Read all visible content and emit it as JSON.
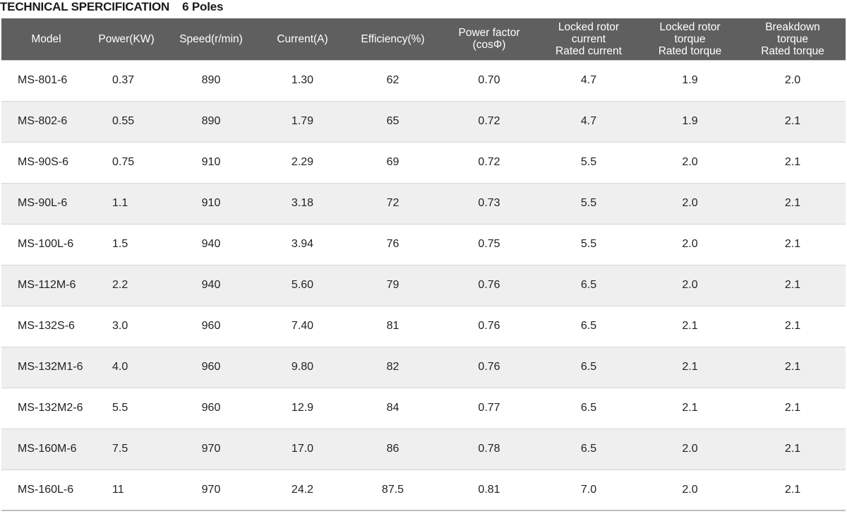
{
  "title": {
    "main": "TECHNICAL SPERCIFICATION",
    "poles": "6 Poles"
  },
  "columns": [
    {
      "key": "model",
      "lines": [
        "Model"
      ]
    },
    {
      "key": "power",
      "lines": [
        "Power(KW)"
      ]
    },
    {
      "key": "speed",
      "lines": [
        "Speed(r/min)"
      ]
    },
    {
      "key": "current",
      "lines": [
        "Current(A)"
      ]
    },
    {
      "key": "efficiency",
      "lines": [
        "Efficiency(%)"
      ]
    },
    {
      "key": "power_factor",
      "lines": [
        "Power factor",
        "(cosΦ)"
      ]
    },
    {
      "key": "locked_current",
      "lines": [
        "Locked rotor",
        "current",
        "Rated current"
      ]
    },
    {
      "key": "locked_torque",
      "lines": [
        "Locked rotor",
        "torque",
        "Rated torque"
      ]
    },
    {
      "key": "breakdown_torque",
      "lines": [
        "Breakdown",
        "torque",
        "Rated torque"
      ]
    }
  ],
  "rows": [
    {
      "model": "MS-801-6",
      "power": "0.37",
      "speed": "890",
      "current": "1.30",
      "efficiency": "62",
      "power_factor": "0.70",
      "locked_current": "4.7",
      "locked_torque": "1.9",
      "breakdown_torque": "2.0"
    },
    {
      "model": "MS-802-6",
      "power": "0.55",
      "speed": "890",
      "current": "1.79",
      "efficiency": "65",
      "power_factor": "0.72",
      "locked_current": "4.7",
      "locked_torque": "1.9",
      "breakdown_torque": "2.1"
    },
    {
      "model": "MS-90S-6",
      "power": "0.75",
      "speed": "910",
      "current": "2.29",
      "efficiency": "69",
      "power_factor": "0.72",
      "locked_current": "5.5",
      "locked_torque": "2.0",
      "breakdown_torque": "2.1"
    },
    {
      "model": "MS-90L-6",
      "power": "1.1",
      "speed": "910",
      "current": "3.18",
      "efficiency": "72",
      "power_factor": "0.73",
      "locked_current": "5.5",
      "locked_torque": "2.0",
      "breakdown_torque": "2.1"
    },
    {
      "model": "MS-100L-6",
      "power": "1.5",
      "speed": "940",
      "current": "3.94",
      "efficiency": "76",
      "power_factor": "0.75",
      "locked_current": "5.5",
      "locked_torque": "2.0",
      "breakdown_torque": "2.1"
    },
    {
      "model": "MS-112M-6",
      "power": "2.2",
      "speed": "940",
      "current": "5.60",
      "efficiency": "79",
      "power_factor": "0.76",
      "locked_current": "6.5",
      "locked_torque": "2.0",
      "breakdown_torque": "2.1"
    },
    {
      "model": "MS-132S-6",
      "power": "3.0",
      "speed": "960",
      "current": "7.40",
      "efficiency": "81",
      "power_factor": "0.76",
      "locked_current": "6.5",
      "locked_torque": "2.1",
      "breakdown_torque": "2.1"
    },
    {
      "model": "MS-132M1-6",
      "power": "4.0",
      "speed": "960",
      "current": "9.80",
      "efficiency": "82",
      "power_factor": "0.76",
      "locked_current": "6.5",
      "locked_torque": "2.1",
      "breakdown_torque": "2.1"
    },
    {
      "model": "MS-132M2-6",
      "power": "5.5",
      "speed": "960",
      "current": "12.9",
      "efficiency": "84",
      "power_factor": "0.77",
      "locked_current": "6.5",
      "locked_torque": "2.1",
      "breakdown_torque": "2.1"
    },
    {
      "model": "MS-160M-6",
      "power": "7.5",
      "speed": "970",
      "current": "17.0",
      "efficiency": "86",
      "power_factor": "0.78",
      "locked_current": "6.5",
      "locked_torque": "2.0",
      "breakdown_torque": "2.1"
    },
    {
      "model": "MS-160L-6",
      "power": "11",
      "speed": "970",
      "current": "24.2",
      "efficiency": "87.5",
      "power_factor": "0.81",
      "locked_current": "7.0",
      "locked_torque": "2.0",
      "breakdown_torque": "2.1"
    }
  ],
  "colors": {
    "header_bg": "#5f5f5f",
    "header_text": "#ffffff",
    "row_alt_bg": "#efeff0",
    "row_bg": "#ffffff",
    "text": "#222222"
  }
}
